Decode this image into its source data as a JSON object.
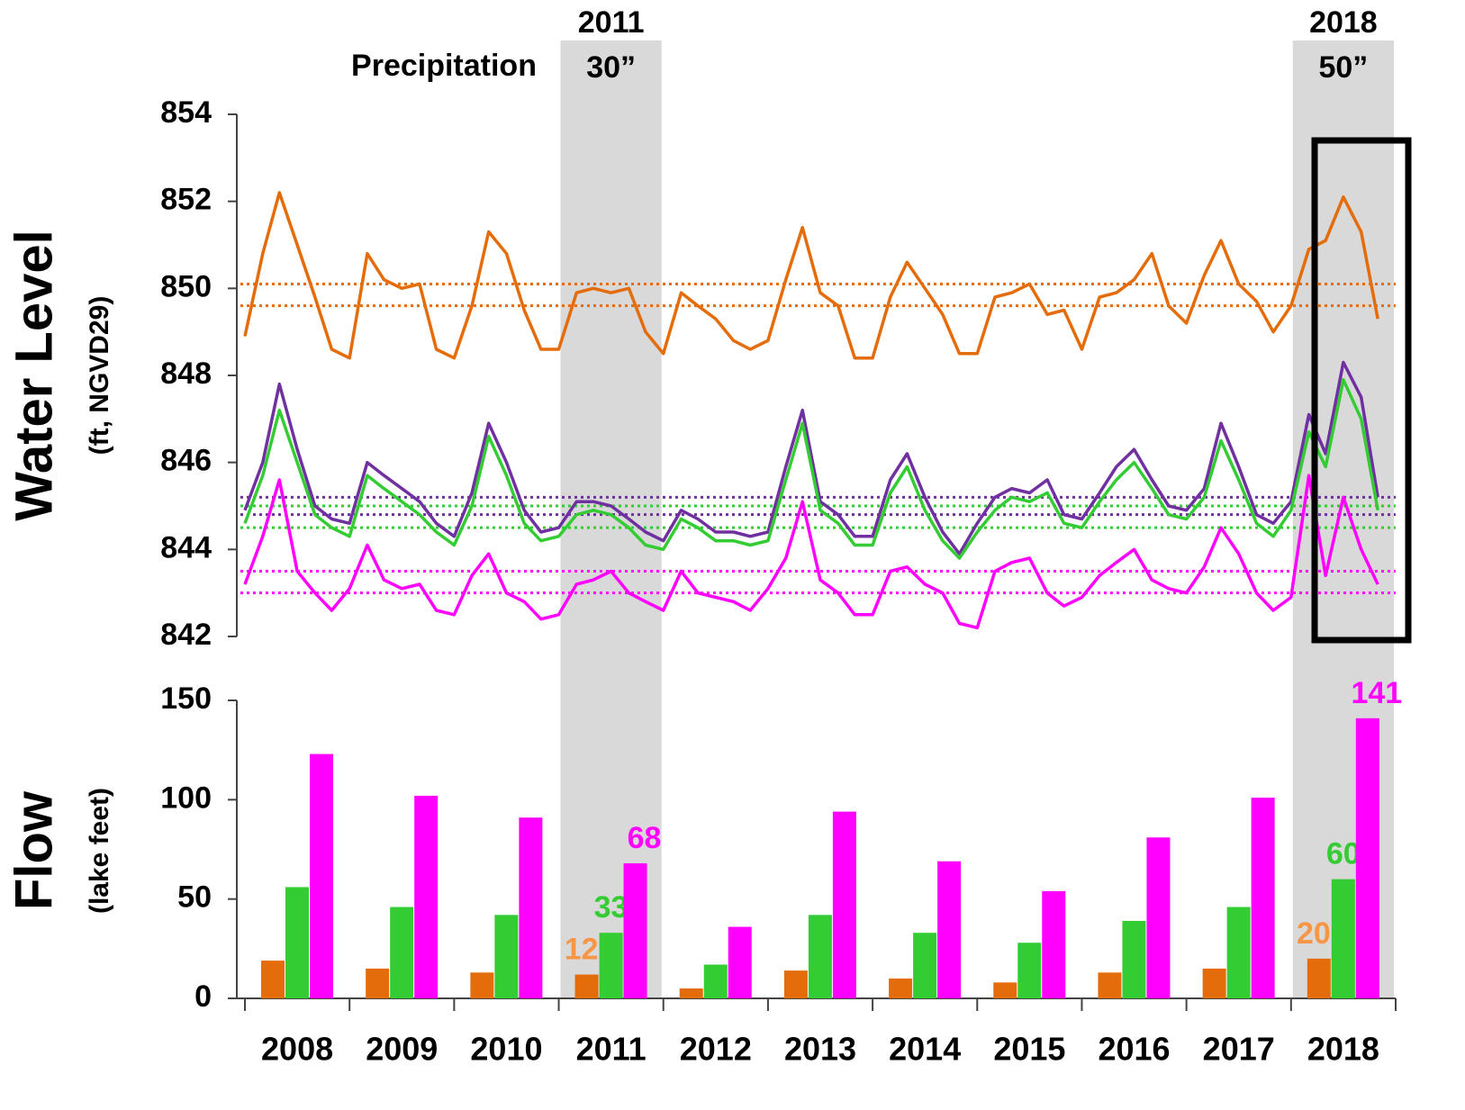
{
  "chart_data": [
    {
      "type": "line",
      "ylabel": "Water Level",
      "ylabel_sub": "(ft, NGVD29)",
      "annotation": "Precipitation",
      "highlights": [
        {
          "x": 2011,
          "label": "30”"
        },
        {
          "x": 2018,
          "label": "50”"
        }
      ],
      "xlim": [
        2008,
        2019
      ],
      "ylim": [
        842,
        854
      ],
      "yticks": [
        842,
        844,
        846,
        848,
        850,
        852,
        854
      ],
      "x": [
        2008,
        2008.17,
        2008.33,
        2008.5,
        2008.67,
        2008.83,
        2009,
        2009.17,
        2009.33,
        2009.5,
        2009.67,
        2009.83,
        2010,
        2010.17,
        2010.33,
        2010.5,
        2010.67,
        2010.83,
        2011,
        2011.17,
        2011.33,
        2011.5,
        2011.67,
        2011.83,
        2012,
        2012.17,
        2012.33,
        2012.5,
        2012.67,
        2012.83,
        2013,
        2013.17,
        2013.33,
        2013.5,
        2013.67,
        2013.83,
        2014,
        2014.17,
        2014.33,
        2014.5,
        2014.67,
        2014.83,
        2015,
        2015.17,
        2015.33,
        2015.5,
        2015.67,
        2015.83,
        2016,
        2016.17,
        2016.33,
        2016.5,
        2016.67,
        2016.83,
        2017,
        2017.17,
        2017.33,
        2017.5,
        2017.67,
        2017.83,
        2018,
        2018.17,
        2018.33,
        2018.5,
        2018.67,
        2018.83
      ],
      "series": [
        {
          "color": "#e46c0a",
          "values": [
            848.9,
            850.8,
            852.2,
            851.0,
            849.8,
            848.6,
            848.4,
            850.8,
            850.2,
            850.0,
            850.1,
            848.6,
            848.4,
            849.6,
            851.3,
            850.8,
            849.5,
            848.6,
            848.6,
            849.9,
            850.0,
            849.9,
            850.0,
            849.0,
            848.5,
            849.9,
            849.6,
            849.3,
            848.8,
            848.6,
            848.8,
            850.2,
            851.4,
            849.9,
            849.6,
            848.4,
            848.4,
            849.8,
            850.6,
            850.0,
            849.4,
            848.5,
            848.5,
            849.8,
            849.9,
            850.1,
            849.4,
            849.5,
            848.6,
            849.8,
            849.9,
            850.2,
            850.8,
            849.6,
            849.2,
            850.3,
            851.1,
            850.1,
            849.7,
            849.0,
            849.6,
            850.9,
            851.1,
            852.1,
            851.3,
            849.3
          ]
        },
        {
          "color": "#7030a0",
          "values": [
            844.9,
            846.0,
            847.8,
            846.3,
            845.0,
            844.7,
            844.6,
            846.0,
            845.7,
            845.4,
            845.1,
            844.6,
            844.3,
            845.3,
            846.9,
            846.0,
            844.9,
            844.4,
            844.5,
            845.1,
            845.1,
            845.0,
            844.7,
            844.4,
            844.2,
            844.9,
            844.7,
            844.4,
            844.4,
            844.3,
            844.4,
            845.9,
            847.2,
            845.1,
            844.8,
            844.3,
            844.3,
            845.6,
            846.2,
            845.2,
            844.4,
            843.9,
            844.6,
            845.2,
            845.4,
            845.3,
            845.6,
            844.8,
            844.7,
            845.3,
            845.9,
            846.3,
            845.6,
            845.0,
            844.9,
            845.4,
            846.9,
            845.9,
            844.8,
            844.6,
            845.1,
            847.1,
            846.2,
            848.3,
            847.5,
            845.2
          ]
        },
        {
          "color": "#33cc33",
          "values": [
            844.6,
            845.7,
            847.2,
            846.0,
            844.8,
            844.5,
            844.3,
            845.7,
            845.4,
            845.1,
            844.8,
            844.4,
            844.1,
            845.0,
            846.6,
            845.7,
            844.6,
            844.2,
            844.3,
            844.8,
            844.9,
            844.8,
            844.5,
            844.1,
            844.0,
            844.7,
            844.5,
            844.2,
            844.2,
            844.1,
            844.2,
            845.6,
            846.9,
            844.9,
            844.6,
            844.1,
            844.1,
            845.3,
            845.9,
            844.9,
            844.2,
            843.8,
            844.4,
            844.9,
            845.2,
            845.1,
            845.3,
            844.6,
            844.5,
            845.1,
            845.6,
            846.0,
            845.4,
            844.8,
            844.7,
            845.2,
            846.5,
            845.6,
            844.6,
            844.3,
            844.9,
            846.7,
            845.9,
            847.9,
            847.0,
            844.9
          ]
        },
        {
          "color": "#ff00ff",
          "values": [
            843.2,
            844.3,
            845.6,
            843.5,
            843.0,
            842.6,
            843.1,
            844.1,
            843.3,
            843.1,
            843.2,
            842.6,
            842.5,
            843.4,
            843.9,
            843.0,
            842.8,
            842.4,
            842.5,
            843.2,
            843.3,
            843.5,
            843.0,
            842.8,
            842.6,
            843.5,
            843.0,
            842.9,
            842.8,
            842.6,
            843.1,
            843.8,
            845.1,
            843.3,
            843.0,
            842.5,
            842.5,
            843.5,
            843.6,
            843.2,
            843.0,
            842.3,
            842.2,
            843.5,
            843.7,
            843.8,
            843.0,
            842.7,
            842.9,
            843.4,
            843.7,
            844.0,
            843.3,
            843.1,
            843.0,
            843.6,
            844.5,
            843.9,
            843.0,
            842.6,
            842.9,
            845.7,
            843.4,
            845.2,
            844.0,
            843.2
          ]
        }
      ],
      "reference_lines": [
        {
          "value": 850.1,
          "color": "#e46c0a"
        },
        {
          "value": 849.6,
          "color": "#e46c0a"
        },
        {
          "value": 845.2,
          "color": "#7030a0"
        },
        {
          "value": 844.8,
          "color": "#7030a0"
        },
        {
          "value": 845.0,
          "color": "#33cc33"
        },
        {
          "value": 844.5,
          "color": "#33cc33"
        },
        {
          "value": 843.5,
          "color": "#ff00ff"
        },
        {
          "value": 843.0,
          "color": "#ff00ff"
        }
      ]
    },
    {
      "type": "bar",
      "ylabel": "Flow",
      "ylabel_sub": "(lake feet)",
      "categories": [
        "2008",
        "2009",
        "2010",
        "2011",
        "2012",
        "2013",
        "2014",
        "2015",
        "2016",
        "2017",
        "2018"
      ],
      "ylim": [
        0,
        150
      ],
      "yticks": [
        0,
        50,
        100,
        150
      ],
      "series": [
        {
          "color": "#e46c0a",
          "label_color": "#f79646",
          "values": [
            19,
            15,
            13,
            12,
            5,
            14,
            10,
            8,
            13,
            15,
            20
          ],
          "value_labels": [
            null,
            null,
            null,
            "12",
            null,
            null,
            null,
            null,
            null,
            null,
            "20"
          ]
        },
        {
          "color": "#33cc33",
          "label_color": "#33cc33",
          "values": [
            56,
            46,
            42,
            33,
            17,
            42,
            33,
            28,
            39,
            46,
            60
          ],
          "value_labels": [
            null,
            null,
            null,
            "33",
            null,
            null,
            null,
            null,
            null,
            null,
            "60"
          ]
        },
        {
          "color": "#ff00ff",
          "label_color": "#ff00ff",
          "values": [
            123,
            102,
            91,
            68,
            36,
            94,
            69,
            54,
            81,
            101,
            141
          ],
          "value_labels": [
            null,
            null,
            null,
            "68",
            null,
            null,
            null,
            null,
            null,
            null,
            "141"
          ]
        }
      ]
    }
  ]
}
